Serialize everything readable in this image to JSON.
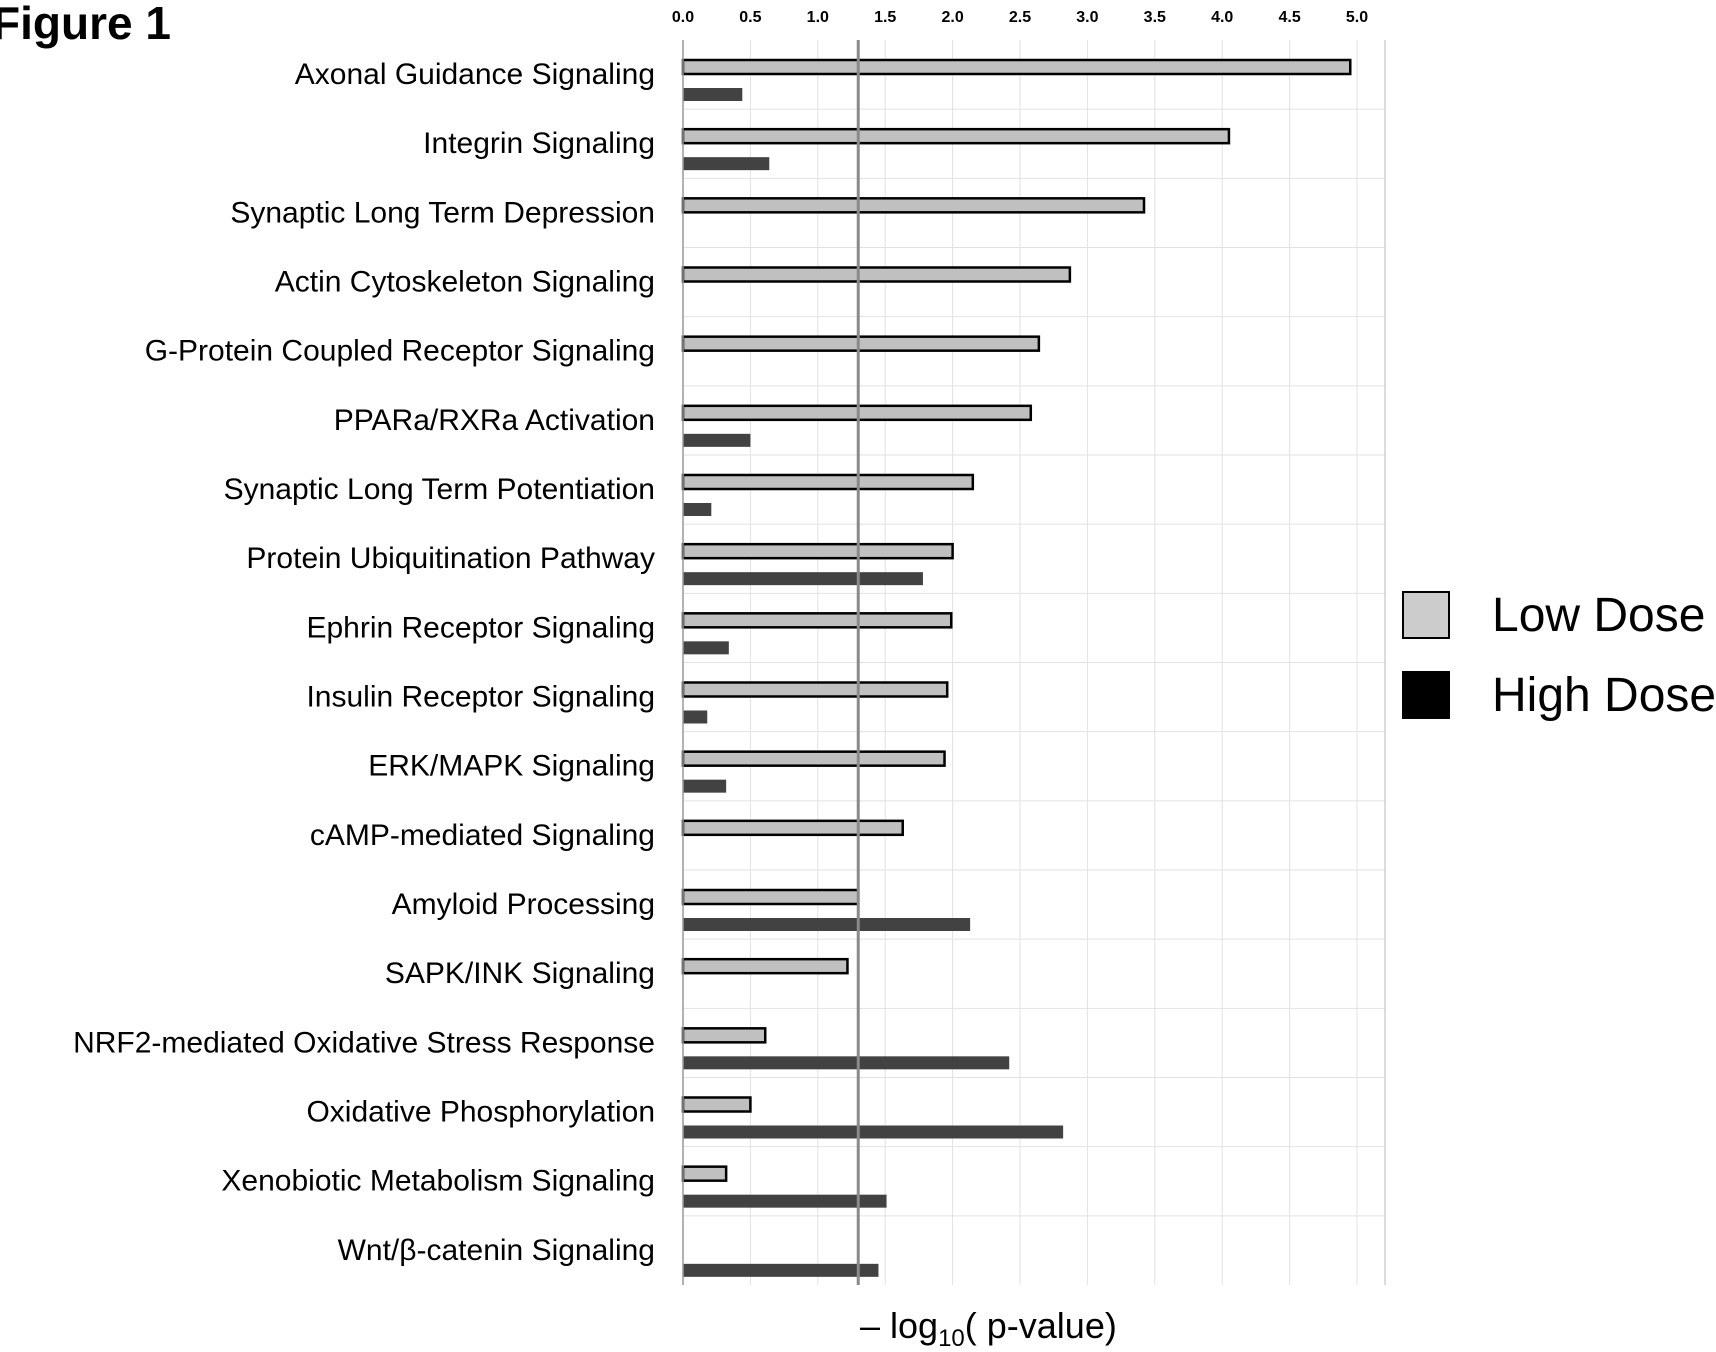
{
  "figure_label": "Figure 1",
  "xaxis_title": {
    "prefix": "– log",
    "sub": "10",
    "suffix": "( p-value)"
  },
  "legend": [
    {
      "label": "Low Dose",
      "color": "#cccccc"
    },
    {
      "label": "High Dose",
      "color": "#000000"
    }
  ],
  "colors": {
    "low_bar": "#c0c0c0",
    "high_bar": "#424242",
    "threshold_line": "#8a8a8a",
    "grid": "#e2e2e2"
  },
  "chart_data": {
    "type": "bar",
    "orientation": "horizontal",
    "xlabel": "– log10( p-value)",
    "xlim": [
      0,
      5.0
    ],
    "xticks": [
      "0.0",
      "0.5",
      "1.0",
      "1.5",
      "2.0",
      "2.5",
      "3.0",
      "3.5",
      "4.0",
      "4.5",
      "5.0"
    ],
    "xtick_values": [
      0,
      0.5,
      1.0,
      1.5,
      2.0,
      2.5,
      3.0,
      3.5,
      4.0,
      4.5,
      5.0
    ],
    "tick_position": "top",
    "legend_position": "right",
    "threshold": 1.3,
    "categories": [
      "Axonal Guidance Signaling",
      "Integrin Signaling",
      "Synaptic Long Term Depression",
      "Actin Cytoskeleton Signaling",
      "G-Protein Coupled Receptor Signaling",
      "PPARa/RXRa Activation",
      "Synaptic Long Term Potentiation",
      "Protein Ubiquitination Pathway",
      "Ephrin Receptor Signaling",
      "Insulin Receptor Signaling",
      "ERK/MAPK Signaling",
      "cAMP-mediated Signaling",
      "Amyloid Processing",
      "SAPK/INK Signaling",
      "NRF2-mediated Oxidative Stress Response",
      "Oxidative Phosphorylation",
      "Xenobiotic Metabolism Signaling",
      "Wnt/β-catenin Signaling"
    ],
    "series": [
      {
        "name": "Low Dose",
        "values": [
          4.95,
          4.05,
          3.42,
          2.87,
          2.64,
          2.58,
          2.15,
          2.0,
          1.99,
          1.96,
          1.94,
          1.63,
          1.3,
          1.22,
          0.61,
          0.5,
          0.32,
          0.0
        ]
      },
      {
        "name": "High Dose",
        "values": [
          0.44,
          0.64,
          0.0,
          0.0,
          0.0,
          0.5,
          0.21,
          1.78,
          0.34,
          0.18,
          0.32,
          0.0,
          2.13,
          0.0,
          2.42,
          2.82,
          1.51,
          1.45
        ]
      }
    ],
    "grid": true
  }
}
